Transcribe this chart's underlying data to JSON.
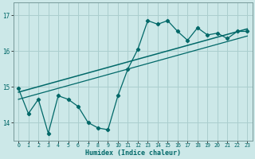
{
  "bg_color": "#cce8e8",
  "grid_color": "#aacece",
  "line_color": "#006868",
  "xlabel": "Humidex (Indice chaleur)",
  "xlim": [
    -0.5,
    23.5
  ],
  "ylim": [
    13.5,
    17.35
  ],
  "yticks": [
    14,
    15,
    16,
    17
  ],
  "xticks": [
    0,
    1,
    2,
    3,
    4,
    5,
    6,
    7,
    8,
    9,
    10,
    11,
    12,
    13,
    14,
    15,
    16,
    17,
    18,
    19,
    20,
    21,
    22,
    23
  ],
  "series1_x": [
    0,
    1,
    2,
    3,
    4,
    5,
    6,
    7,
    8,
    9,
    10,
    11,
    12,
    13,
    14,
    15,
    16,
    17,
    18,
    19,
    20,
    21,
    22,
    23
  ],
  "series1_y": [
    14.95,
    14.25,
    14.65,
    13.7,
    14.75,
    14.65,
    14.45,
    14.0,
    13.85,
    13.8,
    14.75,
    15.5,
    16.05,
    16.85,
    16.75,
    16.85,
    16.55,
    16.3,
    16.65,
    16.45,
    16.5,
    16.35,
    16.55,
    16.55
  ],
  "series2_x": [
    0,
    23
  ],
  "series2_y": [
    14.85,
    16.62
  ],
  "series3_x": [
    0,
    23
  ],
  "series3_y": [
    14.65,
    16.42
  ]
}
